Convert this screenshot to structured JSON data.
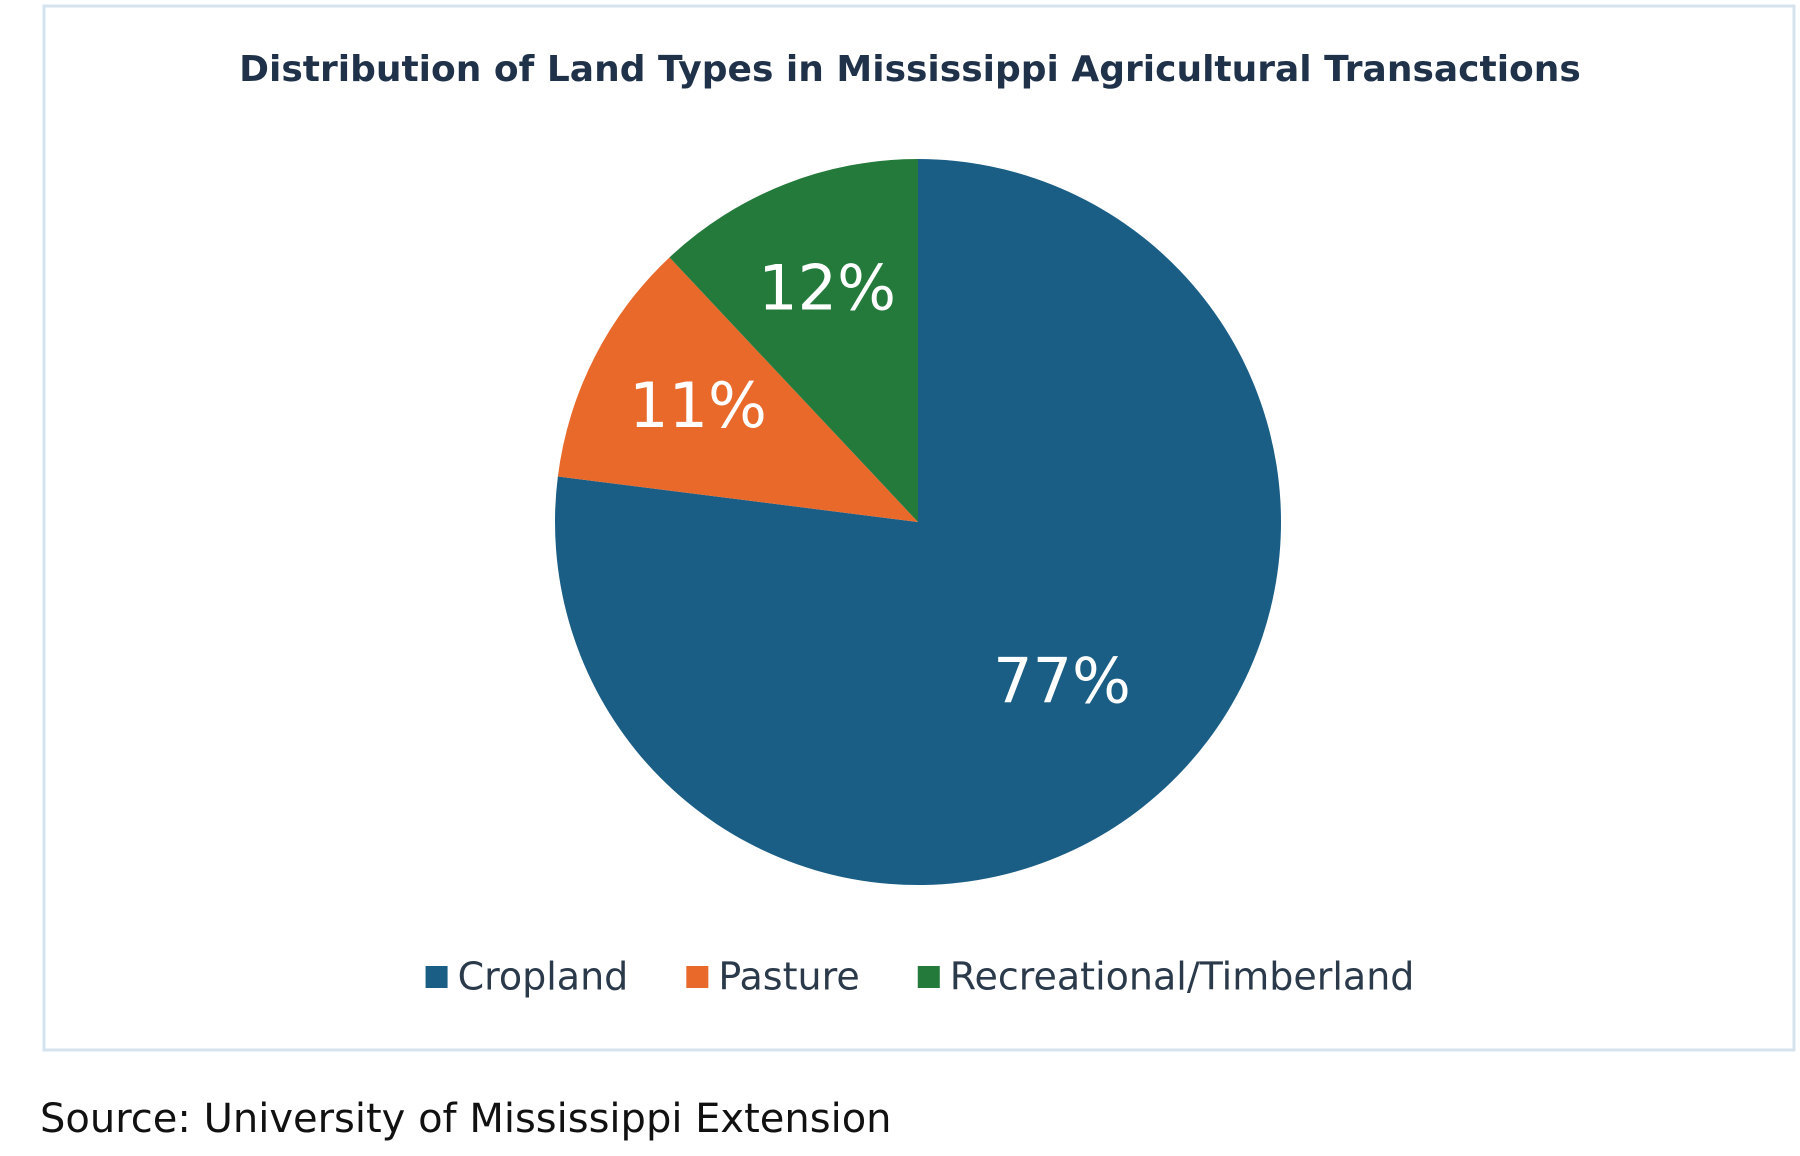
{
  "chart_data": {
    "type": "pie",
    "title": "Distribution of Land Types in Mississippi Agricultural Transactions",
    "categories": [
      "Cropland",
      "Pasture",
      "Recreational/Timberland"
    ],
    "values": [
      77,
      11,
      12
    ],
    "value_labels": [
      "77%",
      "11%",
      "12%"
    ],
    "colors": [
      "#1a5e86",
      "#e8692a",
      "#237a3b"
    ],
    "legend": "bottom",
    "source": "Source: University of Mississippi Extension"
  }
}
